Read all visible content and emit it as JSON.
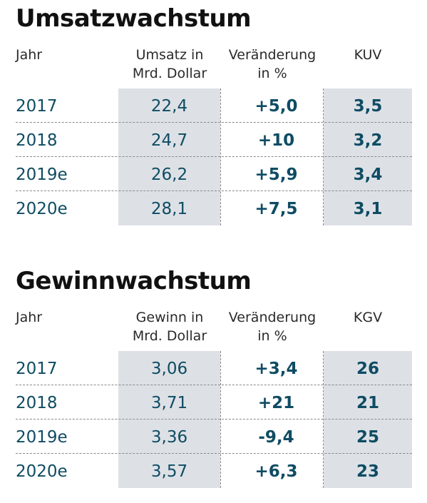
{
  "chart_data": [
    {
      "type": "table",
      "title": "Umsatzwachstum",
      "columns": [
        "Jahr",
        "Umsatz in\nMrd. Dollar",
        "Veränderung\nin %",
        "KUV"
      ],
      "headers": {
        "year": "Jahr",
        "value": [
          "Umsatz in",
          "Mrd. Dollar"
        ],
        "change": [
          "Veränderung",
          "in %"
        ],
        "multiple": "KUV"
      },
      "rows": [
        {
          "year": "2017",
          "value": "22,4",
          "change": "+5,0",
          "multiple": "3,5"
        },
        {
          "year": "2018",
          "value": "24,7",
          "change": "+10",
          "multiple": "3,2"
        },
        {
          "year": "2019e",
          "value": "26,2",
          "change": "+5,9",
          "multiple": "3,4"
        },
        {
          "year": "2020e",
          "value": "28,1",
          "change": "+7,5",
          "multiple": "3,1"
        }
      ]
    },
    {
      "type": "table",
      "title": "Gewinnwachstum",
      "columns": [
        "Jahr",
        "Gewinn in\nMrd. Dollar",
        "Veränderung\nin %",
        "KGV"
      ],
      "headers": {
        "year": "Jahr",
        "value": [
          "Gewinn in",
          "Mrd. Dollar"
        ],
        "change": [
          "Veränderung",
          "in %"
        ],
        "multiple": "KGV"
      },
      "rows": [
        {
          "year": "2017",
          "value": "3,06",
          "change": "+3,4",
          "multiple": "26"
        },
        {
          "year": "2018",
          "value": "3,71",
          "change": "+21",
          "multiple": "21"
        },
        {
          "year": "2019e",
          "value": "3,36",
          "change": "-9,4",
          "multiple": "25"
        },
        {
          "year": "2020e",
          "value": "3,57",
          "change": "+6,3",
          "multiple": "23"
        }
      ]
    }
  ],
  "colors": {
    "title": "#111111",
    "value_text": "#0f4c63",
    "shaded_column": "#dde1e6",
    "divider": "#8a8a8a"
  }
}
